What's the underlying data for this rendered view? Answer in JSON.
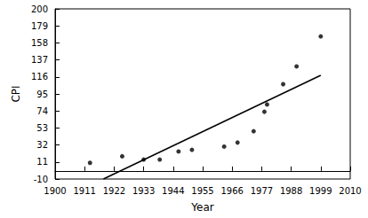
{
  "chart_data": {
    "type": "scatter",
    "x_label": "Year",
    "y_label": "CPI",
    "x": [
      1913,
      1925,
      1933,
      1939,
      1946,
      1951,
      1963,
      1968,
      1974,
      1978,
      1979,
      1985,
      1990,
      1999
    ],
    "values": [
      10,
      18,
      14,
      14,
      24,
      26,
      30,
      35,
      49,
      73,
      82,
      107,
      129,
      166
    ],
    "color": "#000000",
    "marker": "circle",
    "trend_line": {
      "x": [
        1918,
        1999
      ],
      "values": [
        -10,
        118
      ],
      "color": "#000000",
      "line_style": "solid"
    },
    "xlim": [
      1900,
      2010
    ],
    "xticks": [
      1900,
      1911,
      1922,
      1933,
      1944,
      1955,
      1966,
      1977,
      1988,
      1999,
      2010
    ],
    "ylim": [
      -10,
      200
    ],
    "yticks": [
      -10,
      11,
      32,
      53,
      74,
      95,
      116,
      137,
      158,
      179,
      200
    ],
    "grid": false
  }
}
